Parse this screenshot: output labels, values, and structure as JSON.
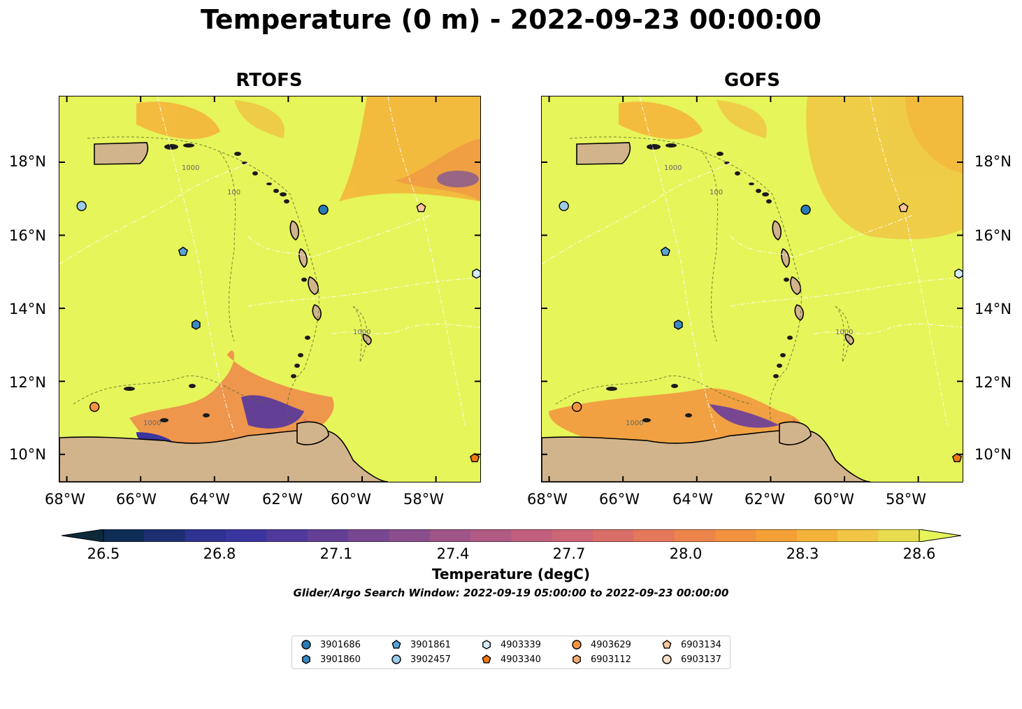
{
  "title": "Temperature (0 m) - 2022-09-23 00:00:00",
  "panels": [
    {
      "name": "RTOFS"
    },
    {
      "name": "GOFS"
    }
  ],
  "lon_ticks": [
    "68°W",
    "66°W",
    "64°W",
    "62°W",
    "60°W",
    "58°W"
  ],
  "lat_ticks": [
    "18°N",
    "16°N",
    "14°N",
    "12°N",
    "10°N"
  ],
  "contour_labels": [
    "1000",
    "100"
  ],
  "colorbar": {
    "label": "Temperature (degC)",
    "ticks": [
      "26.5",
      "26.8",
      "27.1",
      "27.4",
      "27.7",
      "28.0",
      "28.3",
      "28.6"
    ],
    "min": 26.5,
    "max": 28.6,
    "extend": "both",
    "colors": [
      "#0b2a3a",
      "#0f2d55",
      "#1d2f72",
      "#2e3290",
      "#3b35a0",
      "#4f3a9c",
      "#643f96",
      "#784791",
      "#8b4e8c",
      "#9f5488",
      "#b05a84",
      "#c0607e",
      "#cd6675",
      "#d96e68",
      "#e4785a",
      "#ed854a",
      "#f2923e",
      "#f5a036",
      "#f5b23a",
      "#f0c644",
      "#e8dc4f",
      "#e6f55a"
    ]
  },
  "search_window": "Glider/Argo Search Window: 2022-09-19 05:00:00 to 2022-09-23 00:00:00",
  "legend": [
    {
      "id": "3901686",
      "marker": "circle",
      "color": "#2a7ab5"
    },
    {
      "id": "3901860",
      "marker": "hexagon",
      "color": "#3a8ac4"
    },
    {
      "id": "3901861",
      "marker": "pentagon",
      "color": "#5aa3d6"
    },
    {
      "id": "3902457",
      "marker": "circle",
      "color": "#9ccbea"
    },
    {
      "id": "4903339",
      "marker": "hexagon",
      "color": "#d4ecf8"
    },
    {
      "id": "4903340",
      "marker": "pentagon",
      "color": "#f07a10"
    },
    {
      "id": "4903629",
      "marker": "circle",
      "color": "#f59440"
    },
    {
      "id": "6903112",
      "marker": "hexagon",
      "color": "#f8ad70"
    },
    {
      "id": "6903134",
      "marker": "pentagon",
      "color": "#fbc69a"
    },
    {
      "id": "6903137",
      "marker": "circle",
      "color": "#fde0c4"
    }
  ],
  "map_extent": {
    "lon": [
      -68.2,
      -56.8
    ],
    "lat": [
      9.25,
      19.8
    ]
  },
  "floats": [
    {
      "id": "3902457",
      "lon": -67.6,
      "lat": 16.8
    },
    {
      "id": "3901861",
      "lon": -64.85,
      "lat": 15.55
    },
    {
      "id": "3901860",
      "lon": -64.5,
      "lat": 13.55
    },
    {
      "id": "3901686",
      "lon": -61.05,
      "lat": 16.7
    },
    {
      "id": "6903134",
      "lon": -58.4,
      "lat": 16.75
    },
    {
      "id": "4903339",
      "lon": -56.9,
      "lat": 14.95
    },
    {
      "id": "4903629",
      "lon": -67.25,
      "lat": 11.3
    },
    {
      "id": "4903340",
      "lon": -56.95,
      "lat": 9.9
    }
  ],
  "land_color": "#d2b48c",
  "ocean_color": "#e6f55a"
}
